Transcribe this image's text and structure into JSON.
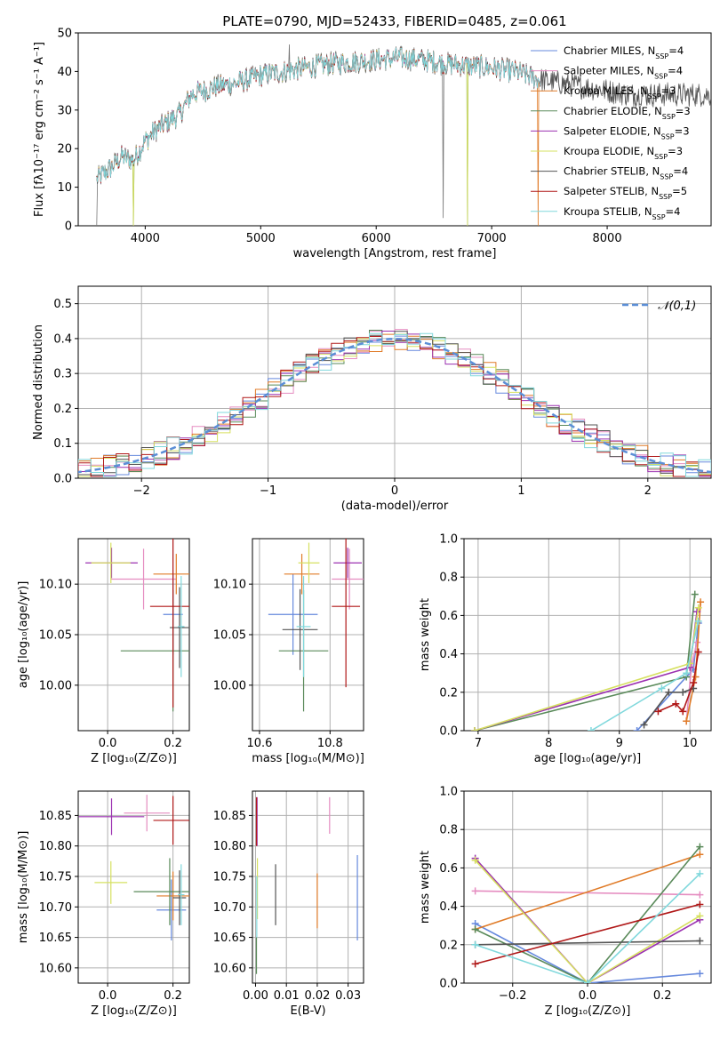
{
  "colors": {
    "chabrier_miles": "#6689dd",
    "salpeter_miles": "#e58cc0",
    "kroupa_miles": "#e07b28",
    "chabrier_elodie": "#5a8a5a",
    "salpeter_elodie": "#9b30b0",
    "kroupa_elodie": "#d6e060",
    "chabrier_stelib": "#555555",
    "salpeter_stelib": "#b01818",
    "kroupa_stelib": "#80d8dc",
    "data": "#777777",
    "normal": "#5b8ed6",
    "grid": "#b0b0b0"
  },
  "chart_data": [
    {
      "id": "spectrum",
      "type": "line",
      "title": "PLATE=0790, MJD=52433, FIBERID=0485, z=0.061",
      "xlabel": "wavelength [Angstrom, rest frame]",
      "ylabel": "Flux [fλ10⁻¹⁷ erg cm⁻² s⁻¹ A⁻¹]",
      "xlim": [
        3420,
        8900
      ],
      "ylim": [
        0,
        50
      ],
      "xticks": [
        4000,
        5000,
        6000,
        7000,
        8000
      ],
      "yticks": [
        0,
        10,
        20,
        30,
        40,
        50
      ],
      "grid": false,
      "legend_position": "top-right",
      "continuum": {
        "x": [
          3580,
          3700,
          3800,
          3900,
          4000,
          4100,
          4200,
          4300,
          4400,
          4600,
          4800,
          5000,
          5200,
          5400,
          5600,
          5800,
          6000,
          6200,
          6400,
          6600,
          6800,
          7000,
          7200,
          7400,
          7600,
          7800,
          8000,
          8200,
          8400
        ],
        "y": [
          12,
          15,
          18,
          17,
          22,
          25,
          27,
          29,
          34,
          36,
          37,
          39,
          40,
          41,
          42,
          42.5,
          43,
          43.5,
          43,
          42,
          41.5,
          41,
          40,
          38,
          37,
          36,
          35,
          34,
          34
        ]
      },
      "series": [
        {
          "name": "Chabrier MILES, N_SSP=4",
          "label": "Chabrier MILES, N",
          "sub": "SSP",
          "suffix": "=4",
          "color_key": "chabrier_miles",
          "end": 7420,
          "dips": []
        },
        {
          "name": "Salpeter MILES, N_SSP=4",
          "label": "Salpeter MILES, N",
          "sub": "SSP",
          "suffix": "=4",
          "color_key": "salpeter_miles",
          "end": 7420,
          "dips": []
        },
        {
          "name": "Kroupa MILES, N_SSP=3",
          "label": "Kroupa MILES, N",
          "sub": "SSP",
          "suffix": "=3",
          "color_key": "kroupa_miles",
          "end": 7420,
          "dips": [
            [
              7400,
              0
            ]
          ]
        },
        {
          "name": "Chabrier ELODIE, N_SSP=3",
          "label": "Chabrier ELODIE, N",
          "sub": "SSP",
          "suffix": "=3",
          "color_key": "chabrier_elodie",
          "end": 6800,
          "dips": [
            [
              3900,
              0
            ],
            [
              6790,
              0
            ]
          ]
        },
        {
          "name": "Salpeter ELODIE, N_SSP=3",
          "label": "Salpeter ELODIE, N",
          "sub": "SSP",
          "suffix": "=3",
          "color_key": "salpeter_elodie",
          "end": 6800,
          "dips": []
        },
        {
          "name": "Kroupa ELODIE, N_SSP=3",
          "label": "Kroupa ELODIE, N",
          "sub": "SSP",
          "suffix": "=3",
          "color_key": "kroupa_elodie",
          "end": 6800,
          "dips": [
            [
              3900,
              0
            ],
            [
              6790,
              0
            ]
          ]
        },
        {
          "name": "Chabrier STELIB, N_SSP=4",
          "label": "Chabrier STELIB, N",
          "sub": "SSP",
          "suffix": "=4",
          "color_key": "chabrier_stelib",
          "end": 8900,
          "dips": []
        },
        {
          "name": "Salpeter STELIB, N_SSP=5",
          "label": "Salpeter STELIB, N",
          "sub": "SSP",
          "suffix": "=5",
          "color_key": "salpeter_stelib",
          "end": 7420,
          "dips": []
        },
        {
          "name": "Kroupa STELIB, N_SSP=4",
          "label": "Kroupa STELIB, N",
          "sub": "SSP",
          "suffix": "=4",
          "color_key": "kroupa_stelib",
          "end": 7420,
          "dips": []
        }
      ],
      "data_spikes": [
        [
          3580,
          0
        ],
        [
          5250,
          47
        ],
        [
          6580,
          2
        ]
      ]
    },
    {
      "id": "residuals",
      "type": "line",
      "xlabel": "(data-model)/error",
      "ylabel": "Normed distribution",
      "xlim": [
        -2.5,
        2.5
      ],
      "ylim": [
        0,
        0.55
      ],
      "xticks": [
        -2,
        -1,
        0,
        1,
        2
      ],
      "yticks": [
        0.0,
        0.1,
        0.2,
        0.3,
        0.4,
        0.5
      ],
      "grid": true,
      "legend_position": "top-right",
      "normal_label": "𝒩(0,1)",
      "hist_bin_width": 0.1
    },
    {
      "id": "age_vs_Z",
      "type": "scatter",
      "xlabel": "Z [log₁₀(Z/Z⊙)]",
      "ylabel": "age  [log₁₀(age/yr)]",
      "xlim": [
        -0.09,
        0.25
      ],
      "ylim": [
        9.955,
        10.145
      ],
      "xticks": [
        0.0,
        0.2
      ],
      "yticks": [
        10.0,
        10.05,
        10.1
      ],
      "grid": true,
      "points": [
        {
          "color_key": "chabrier_miles",
          "x": 0.2,
          "y": 10.07,
          "xerr": 0.03,
          "yerr": 0.04
        },
        {
          "color_key": "salpeter_miles",
          "x": 0.11,
          "y": 10.105,
          "xerr": 0.1,
          "yerr": 0.03
        },
        {
          "color_key": "kroupa_miles",
          "x": 0.21,
          "y": 10.11,
          "xerr": 0.07,
          "yerr": 0.02
        },
        {
          "color_key": "chabrier_elodie",
          "x": 0.2,
          "y": 10.034,
          "xerr": 0.16,
          "yerr": 0.06
        },
        {
          "color_key": "salpeter_elodie",
          "x": 0.012,
          "y": 10.121,
          "xerr": 0.08,
          "yerr": 0.015
        },
        {
          "color_key": "kroupa_elodie",
          "x": 0.01,
          "y": 10.121,
          "xerr": 0.06,
          "yerr": 0.02
        },
        {
          "color_key": "chabrier_stelib",
          "x": 0.22,
          "y": 10.057,
          "xerr": 0.03,
          "yerr": 0.04
        },
        {
          "color_key": "salpeter_stelib",
          "x": 0.2,
          "y": 10.078,
          "xerr": 0.07,
          "yerr": 0.1
        },
        {
          "color_key": "kroupa_stelib",
          "x": 0.225,
          "y": 10.058,
          "xerr": 0.01,
          "yerr": 0.05
        }
      ]
    },
    {
      "id": "age_vs_mass",
      "type": "scatter",
      "xlabel": "mass [log₁₀(M/M⊙)]",
      "ylabel": "",
      "xlim": [
        10.58,
        10.895
      ],
      "ylim": [
        9.955,
        10.145
      ],
      "xticks": [
        10.6,
        10.8
      ],
      "yticks": [
        10.0,
        10.05,
        10.1
      ],
      "grid": true,
      "points": [
        {
          "color_key": "chabrier_miles",
          "x": 10.695,
          "y": 10.07,
          "xerr": 0.07,
          "yerr": 0.04
        },
        {
          "color_key": "salpeter_miles",
          "x": 10.855,
          "y": 10.105,
          "xerr": 0.05,
          "yerr": 0.03
        },
        {
          "color_key": "kroupa_miles",
          "x": 10.72,
          "y": 10.11,
          "xerr": 0.05,
          "yerr": 0.02
        },
        {
          "color_key": "chabrier_elodie",
          "x": 10.725,
          "y": 10.034,
          "xerr": 0.07,
          "yerr": 0.06
        },
        {
          "color_key": "salpeter_elodie",
          "x": 10.85,
          "y": 10.121,
          "xerr": 0.04,
          "yerr": 0.015
        },
        {
          "color_key": "kroupa_elodie",
          "x": 10.74,
          "y": 10.121,
          "xerr": 0.03,
          "yerr": 0.02
        },
        {
          "color_key": "chabrier_stelib",
          "x": 10.715,
          "y": 10.055,
          "xerr": 0.05,
          "yerr": 0.04
        },
        {
          "color_key": "salpeter_stelib",
          "x": 10.845,
          "y": 10.078,
          "xerr": 0.04,
          "yerr": 0.08
        },
        {
          "color_key": "kroupa_stelib",
          "x": 10.725,
          "y": 10.058,
          "xerr": 0.02,
          "yerr": 0.05
        }
      ]
    },
    {
      "id": "weight_vs_age",
      "type": "line",
      "xlabel": "age  [log₁₀(age/yr)]",
      "ylabel": "mass weight",
      "xlim": [
        6.8,
        10.3
      ],
      "ylim": [
        0,
        1.0
      ],
      "xticks": [
        7,
        8,
        9,
        10
      ],
      "yticks": [
        0.0,
        0.2,
        0.4,
        0.6,
        0.8,
        1.0
      ],
      "grid": true,
      "series": [
        {
          "color_key": "chabrier_miles",
          "x": [
            9.25,
            9.95,
            10.05,
            10.12
          ],
          "y": [
            0.0,
            0.28,
            0.32,
            0.56
          ]
        },
        {
          "color_key": "salpeter_miles",
          "x": [
            9.95,
            10.02,
            10.1
          ],
          "y": [
            0.05,
            0.33,
            0.46
          ]
        },
        {
          "color_key": "kroupa_miles",
          "x": [
            9.95,
            10.08,
            10.15
          ],
          "y": [
            0.05,
            0.28,
            0.67
          ]
        },
        {
          "color_key": "chabrier_elodie",
          "x": [
            6.95,
            9.95,
            10.07
          ],
          "y": [
            0.0,
            0.28,
            0.71
          ]
        },
        {
          "color_key": "salpeter_elodie",
          "x": [
            6.95,
            10.0,
            10.1
          ],
          "y": [
            0.0,
            0.33,
            0.62
          ]
        },
        {
          "color_key": "kroupa_elodie",
          "x": [
            6.95,
            10.0,
            10.12
          ],
          "y": [
            0.0,
            0.35,
            0.64
          ]
        },
        {
          "color_key": "chabrier_stelib",
          "x": [
            9.35,
            9.7,
            9.9,
            10.05
          ],
          "y": [
            0.03,
            0.2,
            0.2,
            0.22
          ]
        },
        {
          "color_key": "salpeter_stelib",
          "x": [
            9.55,
            9.8,
            9.9,
            10.05,
            10.12
          ],
          "y": [
            0.1,
            0.14,
            0.1,
            0.25,
            0.41
          ]
        },
        {
          "color_key": "kroupa_stelib",
          "x": [
            8.6,
            9.6,
            9.95,
            10.12
          ],
          "y": [
            0.0,
            0.22,
            0.3,
            0.57
          ]
        }
      ]
    },
    {
      "id": "mass_vs_Z",
      "type": "scatter",
      "xlabel": "Z [log₁₀(Z/Z⊙)]",
      "ylabel": "mass [log₁₀(M/M⊙)]",
      "xlim": [
        -0.09,
        0.25
      ],
      "ylim": [
        10.575,
        10.89
      ],
      "xticks": [
        0.0,
        0.2
      ],
      "yticks": [
        10.6,
        10.65,
        10.7,
        10.75,
        10.8,
        10.85
      ],
      "grid": true,
      "points": [
        {
          "color_key": "chabrier_miles",
          "x": 0.195,
          "y": 10.695,
          "xerr": 0.045,
          "yerr": 0.05
        },
        {
          "color_key": "salpeter_miles",
          "x": 0.12,
          "y": 10.854,
          "xerr": 0.07,
          "yerr": 0.03
        },
        {
          "color_key": "kroupa_miles",
          "x": 0.2,
          "y": 10.718,
          "xerr": 0.05,
          "yerr": 0.04
        },
        {
          "color_key": "chabrier_elodie",
          "x": 0.19,
          "y": 10.725,
          "xerr": 0.11,
          "yerr": 0.055
        },
        {
          "color_key": "salpeter_elodie",
          "x": 0.012,
          "y": 10.848,
          "xerr": 0.1,
          "yerr": 0.03
        },
        {
          "color_key": "kroupa_elodie",
          "x": 0.01,
          "y": 10.74,
          "xerr": 0.05,
          "yerr": 0.035
        },
        {
          "color_key": "chabrier_stelib",
          "x": 0.22,
          "y": 10.715,
          "xerr": 0.02,
          "yerr": 0.045
        },
        {
          "color_key": "salpeter_stelib",
          "x": 0.2,
          "y": 10.842,
          "xerr": 0.06,
          "yerr": 0.04
        },
        {
          "color_key": "kroupa_stelib",
          "x": 0.225,
          "y": 10.72,
          "xerr": 0.01,
          "yerr": 0.05
        }
      ]
    },
    {
      "id": "mass_vs_EBV",
      "type": "scatter",
      "xlabel": "E(B-V)",
      "ylabel": "",
      "xlim": [
        -0.001,
        0.035
      ],
      "ylim": [
        10.575,
        10.89
      ],
      "xticks": [
        0.0,
        0.01,
        0.02,
        0.03
      ],
      "yticks": [
        10.6,
        10.65,
        10.7,
        10.75,
        10.8,
        10.85
      ],
      "grid": true,
      "points": [
        {
          "color_key": "chabrier_miles",
          "x": 0.033,
          "y": 10.715,
          "xerr": 0,
          "yerr": 0.07
        },
        {
          "color_key": "salpeter_miles",
          "x": 0.024,
          "y": 10.85,
          "xerr": 0,
          "yerr": 0.03
        },
        {
          "color_key": "kroupa_miles",
          "x": 0.02,
          "y": 10.71,
          "xerr": 0,
          "yerr": 0.045
        },
        {
          "color_key": "chabrier_elodie",
          "x": 0.0003,
          "y": 10.62,
          "xerr": 0,
          "yerr": 0.03
        },
        {
          "color_key": "salpeter_elodie",
          "x": 0.0005,
          "y": 10.84,
          "xerr": 0,
          "yerr": 0.04
        },
        {
          "color_key": "kroupa_elodie",
          "x": 0.0006,
          "y": 10.73,
          "xerr": 0,
          "yerr": 0.05
        },
        {
          "color_key": "chabrier_stelib",
          "x": 0.0065,
          "y": 10.72,
          "xerr": 0,
          "yerr": 0.05
        },
        {
          "color_key": "salpeter_stelib",
          "x": 0.0003,
          "y": 10.84,
          "xerr": 0,
          "yerr": 0.04
        },
        {
          "color_key": "kroupa_stelib",
          "x": 0.0004,
          "y": 10.7,
          "xerr": 0,
          "yerr": 0.05
        }
      ]
    },
    {
      "id": "weight_vs_Z",
      "type": "line",
      "xlabel": "Z [log₁₀(Z/Z⊙)]",
      "ylabel": "mass weight",
      "xlim": [
        -0.33,
        0.33
      ],
      "ylim": [
        0,
        1.0
      ],
      "xticks": [
        -0.2,
        0.0,
        0.2
      ],
      "yticks": [
        0.0,
        0.2,
        0.4,
        0.6,
        0.8,
        1.0
      ],
      "grid": true,
      "series": [
        {
          "color_key": "chabrier_miles",
          "x": [
            -0.3,
            0.0,
            0.3
          ],
          "y": [
            0.31,
            0.0,
            0.05
          ]
        },
        {
          "color_key": "salpeter_miles",
          "x": [
            -0.3,
            0.3
          ],
          "y": [
            0.48,
            0.46
          ]
        },
        {
          "color_key": "kroupa_miles",
          "x": [
            -0.3,
            0.3
          ],
          "y": [
            0.28,
            0.67
          ]
        },
        {
          "color_key": "chabrier_elodie",
          "x": [
            -0.3,
            0.0,
            0.3
          ],
          "y": [
            0.28,
            0.0,
            0.71
          ]
        },
        {
          "color_key": "salpeter_elodie",
          "x": [
            -0.3,
            0.0,
            0.3
          ],
          "y": [
            0.65,
            0.0,
            0.33
          ]
        },
        {
          "color_key": "kroupa_elodie",
          "x": [
            -0.3,
            0.0,
            0.3
          ],
          "y": [
            0.64,
            0.0,
            0.35
          ]
        },
        {
          "color_key": "chabrier_stelib",
          "x": [
            -0.3,
            0.3
          ],
          "y": [
            0.2,
            0.22
          ]
        },
        {
          "color_key": "salpeter_stelib",
          "x": [
            -0.3,
            0.3
          ],
          "y": [
            0.1,
            0.41
          ]
        },
        {
          "color_key": "kroupa_stelib",
          "x": [
            -0.3,
            0.0,
            0.3
          ],
          "y": [
            0.2,
            0.0,
            0.57
          ]
        }
      ]
    }
  ]
}
